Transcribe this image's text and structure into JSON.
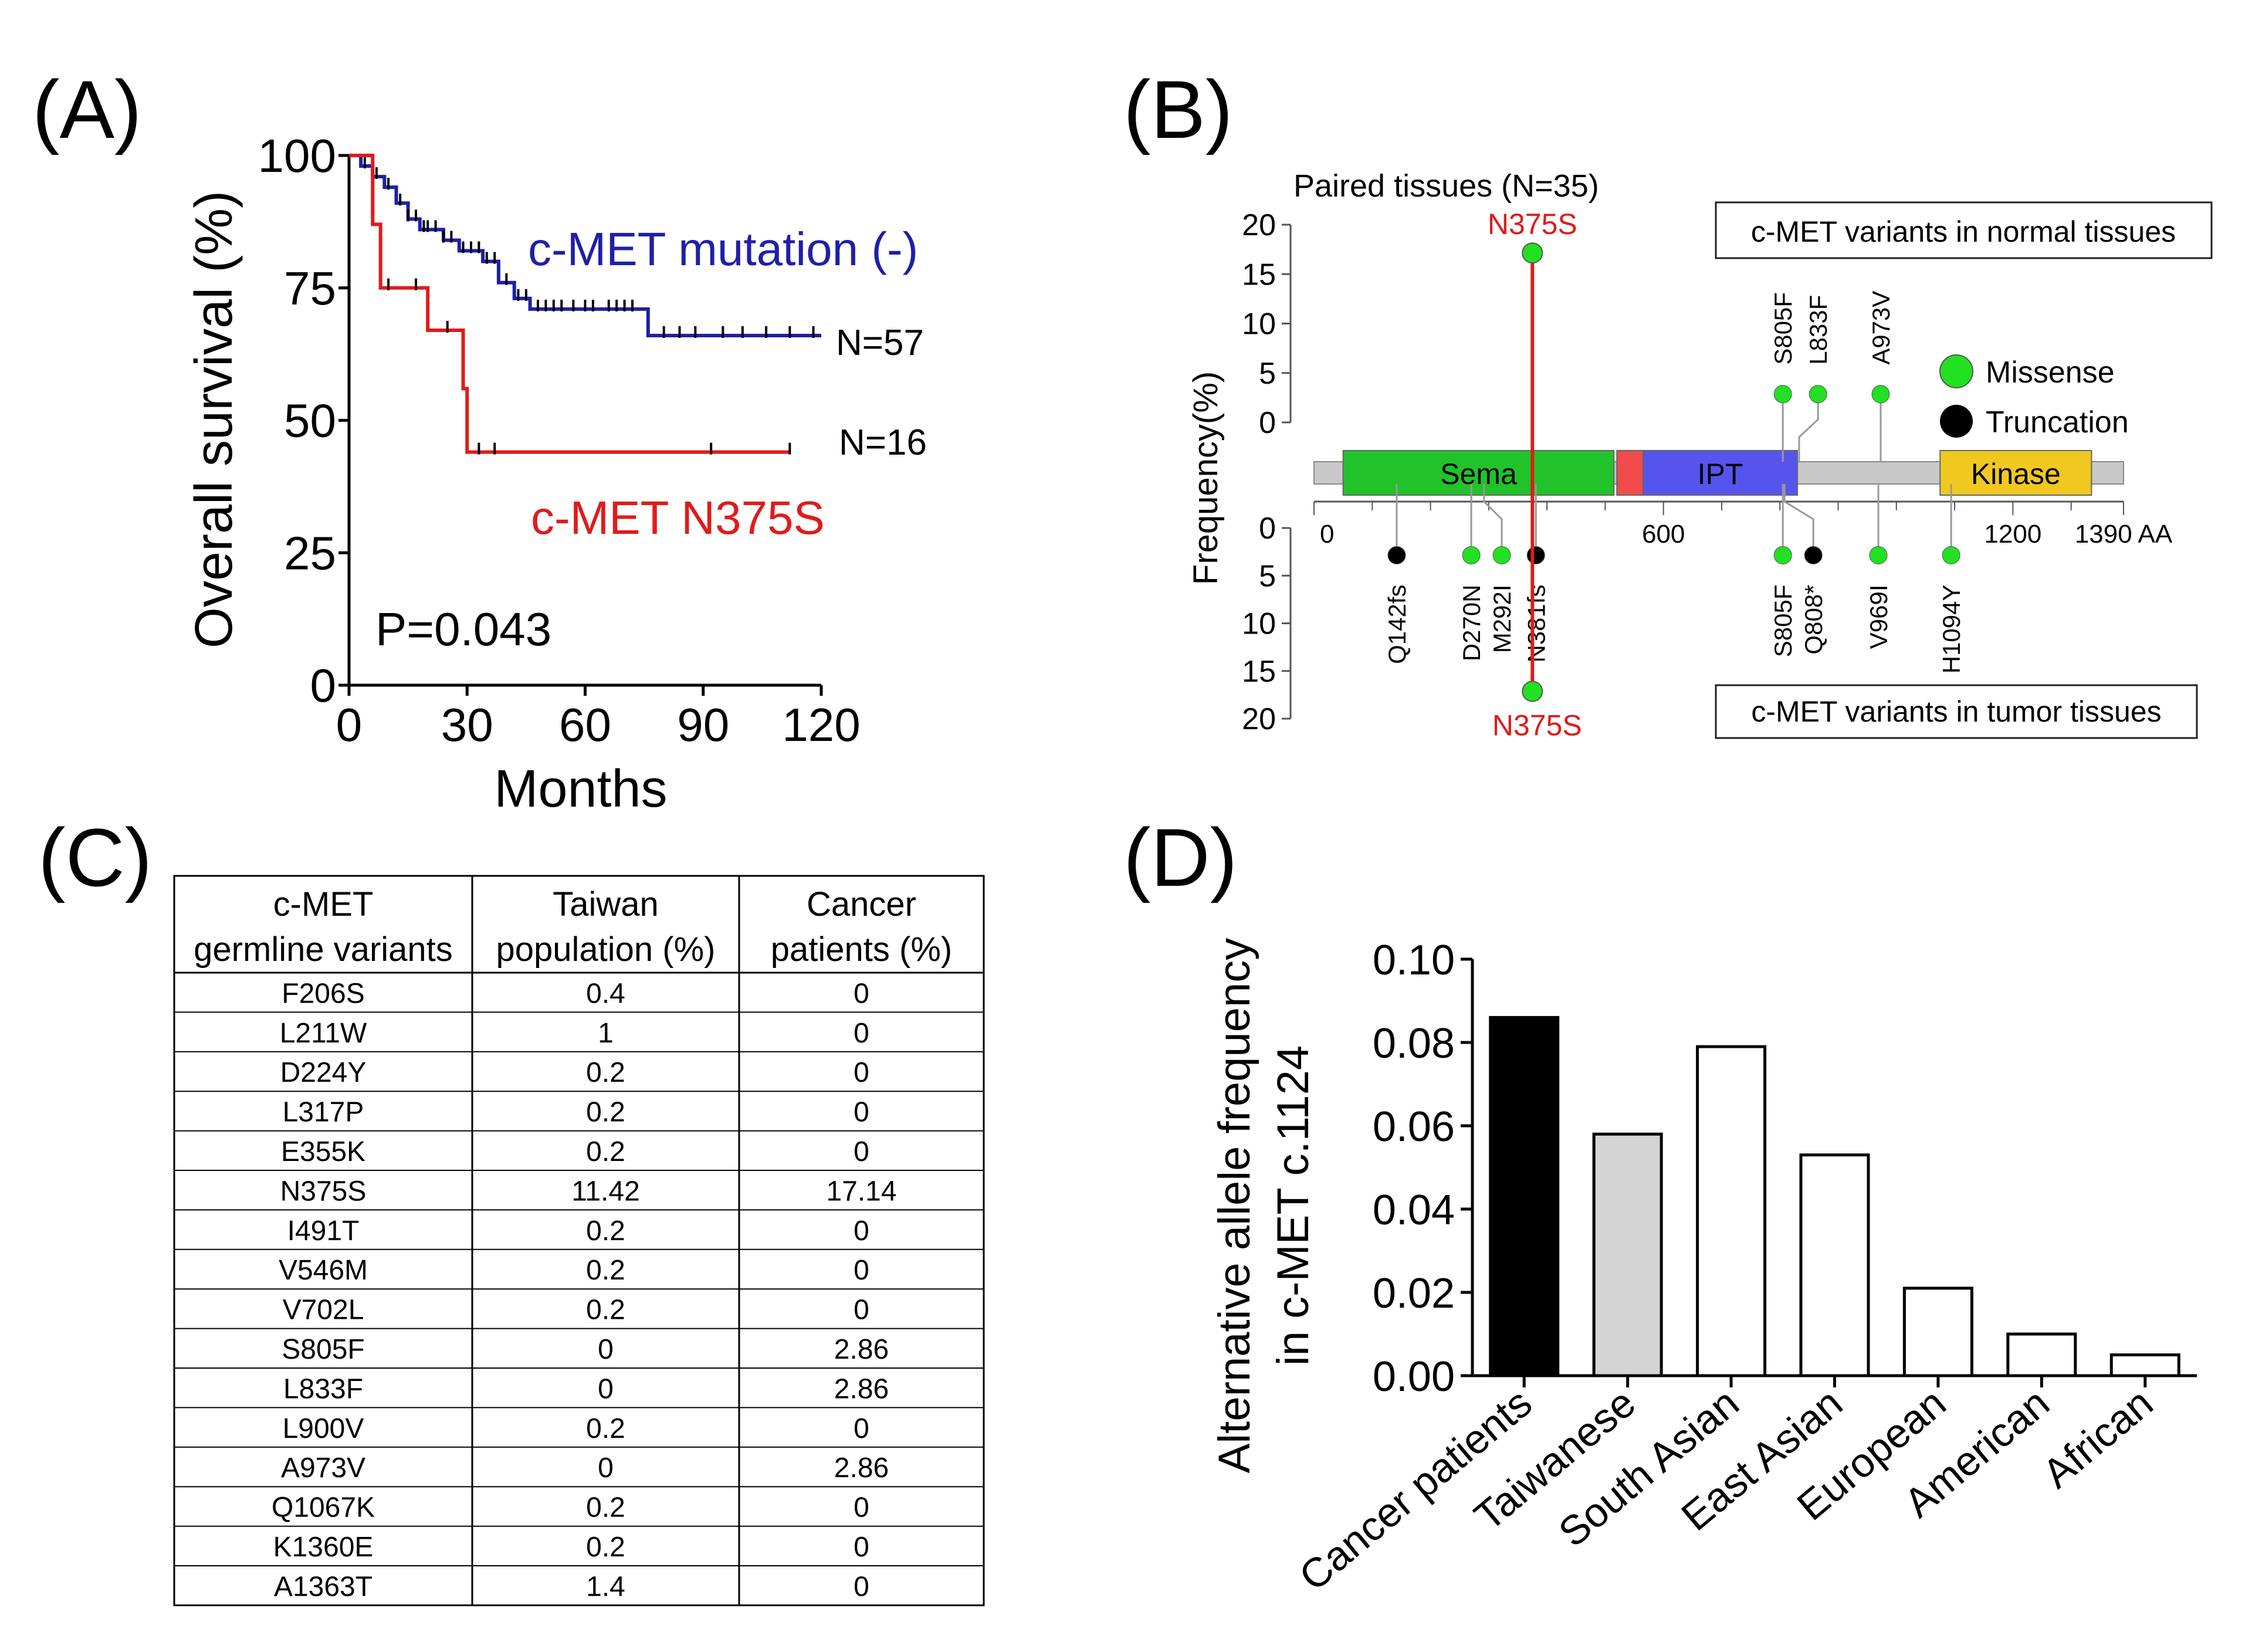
{
  "panels": {
    "a_label": "(A)",
    "b_label": "(B)",
    "c_label": "(C)",
    "d_label": "(D)"
  },
  "chart_data": [
    {
      "id": "A",
      "type": "line",
      "subtype": "kaplan-meier",
      "xlabel": "Months",
      "ylabel": "Overall survival (%)",
      "xticks": [
        0,
        30,
        60,
        90,
        120
      ],
      "yticks": [
        0,
        25,
        50,
        75,
        100
      ],
      "xlim": [
        0,
        120
      ],
      "ylim": [
        0,
        100
      ],
      "p_value": "P=0.043",
      "series": [
        {
          "name": "c-MET mutation (-)",
          "n_label": "N=57",
          "color": "#1f1fa8",
          "steps": [
            [
              0,
              100
            ],
            [
              3,
              98
            ],
            [
              6,
              96
            ],
            [
              9,
              94
            ],
            [
              12,
              91
            ],
            [
              15,
              88
            ],
            [
              18,
              86
            ],
            [
              24,
              84
            ],
            [
              28,
              82
            ],
            [
              34,
              80
            ],
            [
              38,
              76
            ],
            [
              42,
              73
            ],
            [
              46,
              71
            ],
            [
              76,
              71
            ],
            [
              76,
              66
            ],
            [
              120,
              66
            ]
          ],
          "censor": [
            4,
            7,
            10,
            13,
            15,
            17,
            19,
            20,
            22,
            24,
            26,
            29,
            31,
            33,
            35,
            37,
            40,
            43,
            45,
            48,
            50,
            52,
            54,
            57,
            60,
            62,
            66,
            68,
            70,
            72,
            80,
            84,
            88,
            95,
            100,
            106,
            112,
            118
          ]
        },
        {
          "name": "c-MET N375S",
          "n_label": "N=16",
          "color": "#e01b1b",
          "steps": [
            [
              0,
              100
            ],
            [
              6,
              100
            ],
            [
              6,
              87
            ],
            [
              8,
              75
            ],
            [
              20,
              75
            ],
            [
              20,
              67
            ],
            [
              29,
              67
            ],
            [
              29,
              56
            ],
            [
              30,
              44
            ],
            [
              112,
              44
            ]
          ],
          "censor": [
            10,
            17,
            25,
            33,
            37,
            92,
            112
          ]
        }
      ]
    },
    {
      "id": "B",
      "type": "lollipop",
      "title": "Paired tissues (N=35)",
      "ylabel": "Frequency(%)",
      "yticks_top": [
        0,
        5,
        10,
        15,
        20
      ],
      "yticks_bottom": [
        0,
        5,
        10,
        15,
        20
      ],
      "axis_ticks": [
        {
          "value": 0,
          "label": "0"
        },
        {
          "value": 600,
          "label": "600"
        },
        {
          "value": 1200,
          "label": "1200"
        },
        {
          "value": 1390,
          "label": "1390 AA"
        }
      ],
      "protein_length": 1390,
      "domains": [
        {
          "name": "Sema",
          "label": "Sema",
          "start": 50,
          "end": 515,
          "color": "#22c22a"
        },
        {
          "name": "PSI",
          "label": "",
          "start": 520,
          "end": 565,
          "color": "#f24b4b"
        },
        {
          "name": "IPT",
          "label": "IPT",
          "start": 565,
          "end": 830,
          "color": "#5555ee"
        },
        {
          "name": "Kinase",
          "label": "Kinase",
          "start": 1075,
          "end": 1335,
          "color": "#f0c820"
        }
      ],
      "normal_box_label": "c-MET variants in normal tissues",
      "tumor_box_label": "c-MET variants in tumor tissues",
      "legend": {
        "missense": "Missense",
        "truncation": "Truncation"
      },
      "highlight": {
        "label": "N375S",
        "pos": 375,
        "freq_normal": 17.14,
        "freq_tumor": 17.14,
        "color": "#e01b1b"
      },
      "normal_variants": [
        {
          "label": "S805F",
          "pos": 805,
          "type": "missense",
          "freq": 2.86
        },
        {
          "label": "L833F",
          "pos": 833,
          "type": "missense",
          "freq": 2.86
        },
        {
          "label": "A973V",
          "pos": 973,
          "type": "missense",
          "freq": 2.86
        }
      ],
      "tumor_variants": [
        {
          "label": "Q142fs",
          "pos": 142,
          "type": "truncation",
          "freq": 2.86
        },
        {
          "label": "M292I",
          "pos": 292,
          "type": "missense",
          "freq": 2.86
        },
        {
          "label": "D270N",
          "pos": 270,
          "type": "missense",
          "freq": 2.86
        },
        {
          "label": "N381fs",
          "pos": 381,
          "type": "truncation",
          "freq": 2.86
        },
        {
          "label": "S805F",
          "pos": 805,
          "type": "missense",
          "freq": 2.86
        },
        {
          "label": "Q808*",
          "pos": 808,
          "type": "truncation",
          "freq": 2.86
        },
        {
          "label": "V969I",
          "pos": 969,
          "type": "missense",
          "freq": 2.86
        },
        {
          "label": "H1094Y",
          "pos": 1094,
          "type": "missense",
          "freq": 2.86
        }
      ]
    },
    {
      "id": "C",
      "type": "table",
      "headers": [
        [
          "c-MET",
          "germline variants"
        ],
        [
          "Taiwan",
          "population  (%)"
        ],
        [
          "Cancer",
          "patients (%)"
        ]
      ],
      "rows": [
        [
          "F206S",
          "0.4",
          "0"
        ],
        [
          "L211W",
          "1",
          "0"
        ],
        [
          "D224Y",
          "0.2",
          "0"
        ],
        [
          "L317P",
          "0.2",
          "0"
        ],
        [
          "E355K",
          "0.2",
          "0"
        ],
        [
          "N375S",
          "11.42",
          "17.14"
        ],
        [
          "I491T",
          "0.2",
          "0"
        ],
        [
          "V546M",
          "0.2",
          "0"
        ],
        [
          "V702L",
          "0.2",
          "0"
        ],
        [
          "S805F",
          "0",
          "2.86"
        ],
        [
          "L833F",
          "0",
          "2.86"
        ],
        [
          "L900V",
          "0.2",
          "0"
        ],
        [
          "A973V",
          "0",
          "2.86"
        ],
        [
          "Q1067K",
          "0.2",
          "0"
        ],
        [
          "K1360E",
          "0.2",
          "0"
        ],
        [
          "A1363T",
          "1.4",
          "0"
        ]
      ]
    },
    {
      "id": "D",
      "type": "bar",
      "ylabel_line1": "Alternative allele frequency",
      "ylabel_line2": "in c-MET c.1124",
      "ylim": [
        0,
        0.1
      ],
      "yticks": [
        "0.00",
        "0.02",
        "0.04",
        "0.06",
        "0.08",
        "0.10"
      ],
      "categories": [
        "Cancer patients",
        "Taiwanese",
        "South Asian",
        "East Asian",
        "European",
        "American",
        "African"
      ],
      "values": [
        0.086,
        0.058,
        0.079,
        0.053,
        0.021,
        0.01,
        0.005
      ],
      "fills": [
        "#000000",
        "#d4d4d4",
        "#ffffff",
        "#ffffff",
        "#ffffff",
        "#ffffff",
        "#ffffff"
      ]
    }
  ]
}
